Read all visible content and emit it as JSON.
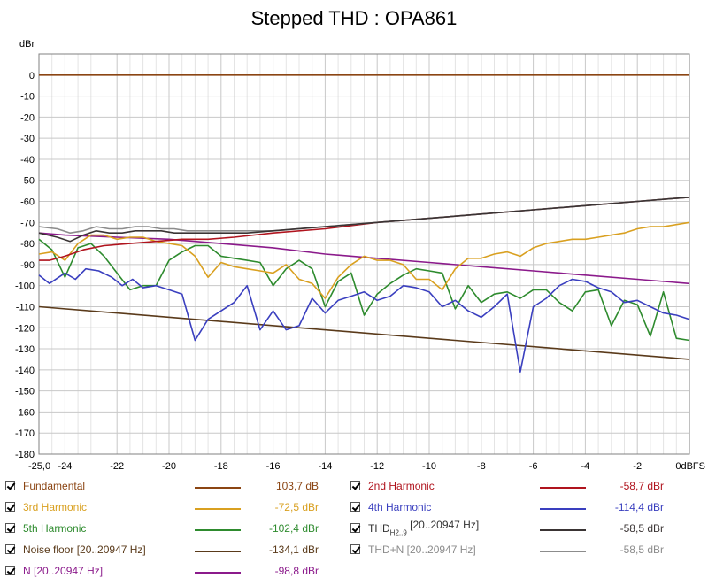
{
  "chart_data": {
    "type": "line",
    "title": "Stepped THD : OPA861",
    "ylabel": "dBr",
    "ylim": [
      -180,
      10
    ],
    "xlim": [
      -25.0,
      0
    ],
    "grid": true,
    "y_ticks": [
      0,
      -10,
      -20,
      -30,
      -40,
      -50,
      -60,
      -70,
      -80,
      -90,
      -100,
      -110,
      -120,
      -130,
      -140,
      -150,
      -160,
      -170,
      -180
    ],
    "y_tick_labels": [
      "0",
      "-10",
      "-20",
      "-30",
      "-40",
      "-50",
      "-60",
      "-70",
      "-80",
      "-90",
      "-100",
      "-110",
      "-120",
      "-130",
      "-140",
      "-150",
      "-160",
      "-170",
      "-180"
    ],
    "x_ticks": [
      -25.0,
      -24,
      -22,
      -20,
      -18,
      -16,
      -14,
      -12,
      -10,
      -8,
      -6,
      -4,
      -2,
      0
    ],
    "x_tick_labels": [
      "-25,0",
      "-24",
      "-22",
      "-20",
      "-18",
      "-16",
      "-14",
      "-12",
      "-10",
      "-8",
      "-6",
      "-4",
      "-2",
      "0dBFS"
    ],
    "series": [
      {
        "name": "Fundamental",
        "color": "#8b4513",
        "checked": true,
        "value_label": "103,7 dB",
        "x": [
          -25,
          0
        ],
        "y": [
          0,
          0
        ]
      },
      {
        "name": "2nd Harmonic",
        "color": "#b0141e",
        "checked": true,
        "value_label": "-58,7 dBr",
        "x": [
          -25,
          -24.6,
          -24,
          -23.3,
          -22.5,
          -21.5,
          -20.5,
          -19.5,
          -18.5,
          -17.5,
          -16,
          -14,
          -12,
          -10,
          -8,
          -6,
          -4,
          -2,
          0
        ],
        "y": [
          -88,
          -88,
          -86,
          -83,
          -81,
          -80,
          -79,
          -78,
          -78,
          -77,
          -75,
          -73,
          -70,
          -68,
          -66,
          -64,
          -62,
          -60,
          -58
        ]
      },
      {
        "name": "3rd Harmonic",
        "color": "#d9a020",
        "checked": true,
        "value_label": "-72,5 dBr",
        "x": [
          -25,
          -24.5,
          -24,
          -23.5,
          -23,
          -22.5,
          -22,
          -21.5,
          -21,
          -20.5,
          -20,
          -19.5,
          -19,
          -18.5,
          -18,
          -17.5,
          -17,
          -16.5,
          -16,
          -15.5,
          -15,
          -14.5,
          -14,
          -13.5,
          -13,
          -12.5,
          -12,
          -11.5,
          -11,
          -10.5,
          -10,
          -9.5,
          -9,
          -8.5,
          -8,
          -7.5,
          -7,
          -6.5,
          -6,
          -5.5,
          -5,
          -4.5,
          -4,
          -3.5,
          -3,
          -2.5,
          -2,
          -1.5,
          -1,
          -0.5,
          0
        ],
        "y": [
          -85,
          -84,
          -88,
          -80,
          -76,
          -76,
          -78,
          -77,
          -77,
          -79,
          -80,
          -81,
          -86,
          -96,
          -89,
          -91,
          -92,
          -93,
          -94,
          -90,
          -97,
          -99,
          -106,
          -96,
          -90,
          -86,
          -88,
          -88,
          -90,
          -97,
          -97,
          -102,
          -92,
          -87,
          -87,
          -85,
          -84,
          -86,
          -82,
          -80,
          -79,
          -78,
          -78,
          -77,
          -76,
          -75,
          -73,
          -72,
          -72,
          -71,
          -70
        ]
      },
      {
        "name": "4th Harmonic",
        "color": "#3a3fbf",
        "checked": true,
        "value_label": "-114,4 dBr",
        "x": [
          -25,
          -24.6,
          -24,
          -23.6,
          -23.2,
          -22.7,
          -22.2,
          -21.8,
          -21.4,
          -21,
          -20.5,
          -20,
          -19.5,
          -19,
          -18.5,
          -18,
          -17.5,
          -17,
          -16.5,
          -16,
          -15.5,
          -15,
          -14.5,
          -14,
          -13.5,
          -13,
          -12.5,
          -12,
          -11.5,
          -11,
          -10.5,
          -10,
          -9.5,
          -9,
          -8.5,
          -8,
          -7.5,
          -7,
          -6.5,
          -6,
          -5.5,
          -5,
          -4.5,
          -4,
          -3.5,
          -3,
          -2.5,
          -2,
          -1.5,
          -1,
          -0.5,
          0
        ],
        "y": [
          -95,
          -99,
          -94,
          -97,
          -92,
          -93,
          -96,
          -100,
          -97,
          -101,
          -100,
          -102,
          -104,
          -126,
          -116,
          -112,
          -108,
          -100,
          -121,
          -112,
          -121,
          -119,
          -106,
          -113,
          -107,
          -105,
          -103,
          -107,
          -105,
          -100,
          -101,
          -103,
          -110,
          -107,
          -112,
          -115,
          -110,
          -104,
          -141,
          -110,
          -106,
          -100,
          -97,
          -98,
          -101,
          -103,
          -108,
          -107,
          -110,
          -113,
          -114,
          -116
        ]
      },
      {
        "name": "5th Harmonic",
        "color": "#2e8b2e",
        "checked": true,
        "value_label": "-102,4 dBr",
        "x": [
          -25,
          -24.5,
          -24,
          -23.5,
          -23,
          -22.5,
          -22,
          -21.5,
          -21,
          -20.5,
          -20,
          -19.5,
          -19,
          -18.5,
          -18,
          -17.5,
          -17,
          -16.5,
          -16,
          -15.5,
          -15,
          -14.5,
          -14,
          -13.5,
          -13,
          -12.5,
          -12,
          -11.5,
          -11,
          -10.5,
          -10,
          -9.5,
          -9,
          -8.5,
          -8,
          -7.5,
          -7,
          -6.5,
          -6,
          -5.5,
          -5,
          -4.5,
          -4,
          -3.5,
          -3,
          -2.5,
          -2,
          -1.5,
          -1,
          -0.5,
          0
        ],
        "y": [
          -78,
          -83,
          -96,
          -82,
          -80,
          -86,
          -94,
          -102,
          -100,
          -100,
          -88,
          -84,
          -81,
          -81,
          -86,
          -87,
          -88,
          -89,
          -100,
          -92,
          -88,
          -92,
          -110,
          -98,
          -94,
          -114,
          -104,
          -99,
          -95,
          -92,
          -93,
          -94,
          -111,
          -100,
          -108,
          -104,
          -103,
          -106,
          -102,
          -102,
          -108,
          -112,
          -103,
          -102,
          -119,
          -107,
          -109,
          -124,
          -103,
          -125,
          -126
        ]
      },
      {
        "name": "THD",
        "name_sub": "H2..9",
        "name_suffix": " [20..20947 Hz]",
        "color": "#3a3434",
        "checked": true,
        "value_label": "-58,5 dBr",
        "x": [
          -25,
          -24.3,
          -23.8,
          -23.3,
          -22.8,
          -22.3,
          -21.8,
          -21.3,
          -20.8,
          -20.3,
          -19.8,
          -19.3,
          -18.8,
          -18,
          -17,
          -16,
          -14,
          -12,
          -10,
          -8,
          -6,
          -4,
          -2,
          0
        ],
        "y": [
          -75,
          -77,
          -79,
          -76,
          -74,
          -75,
          -75,
          -74,
          -74,
          -74,
          -75,
          -75,
          -75,
          -75,
          -75,
          -74,
          -72,
          -70,
          -68,
          -66,
          -64,
          -62,
          -60,
          -58
        ]
      },
      {
        "name": "Noise floor [20..20947 Hz]",
        "color": "#5a3a1a",
        "checked": true,
        "value_label": "-134,1 dBr",
        "x": [
          -25,
          0
        ],
        "y": [
          -110,
          -135
        ]
      },
      {
        "name": "THD+N [20..20947 Hz]",
        "color": "#8c8c8c",
        "checked": true,
        "value_label": "-58,5 dBr",
        "x": [
          -25,
          -24.3,
          -23.8,
          -23.3,
          -22.8,
          -22.3,
          -21.8,
          -21.3,
          -20.8,
          -20.3,
          -19.8,
          -19.3,
          -18.8,
          -18,
          -17,
          -16,
          -14,
          -12,
          -10,
          -8,
          -6,
          -4,
          -2,
          0
        ],
        "y": [
          -72,
          -73,
          -75,
          -74,
          -72,
          -73,
          -73,
          -72,
          -72,
          -73,
          -73,
          -74,
          -74,
          -74,
          -74,
          -74,
          -72,
          -70,
          -68,
          -66,
          -64,
          -62,
          -60,
          -58
        ]
      },
      {
        "name": "N [20..20947 Hz]",
        "color": "#8b1a8b",
        "checked": true,
        "value_label": "-98,8 dBr",
        "x": [
          -25,
          -24,
          -22,
          -20,
          -18,
          -16,
          -14,
          -12,
          -10,
          -8,
          -6,
          -4,
          -2,
          0
        ],
        "y": [
          -75,
          -76,
          -77,
          -78,
          -80,
          -82,
          -85,
          -87,
          -89,
          -91,
          -93,
          -95,
          -97,
          -99
        ]
      }
    ]
  }
}
